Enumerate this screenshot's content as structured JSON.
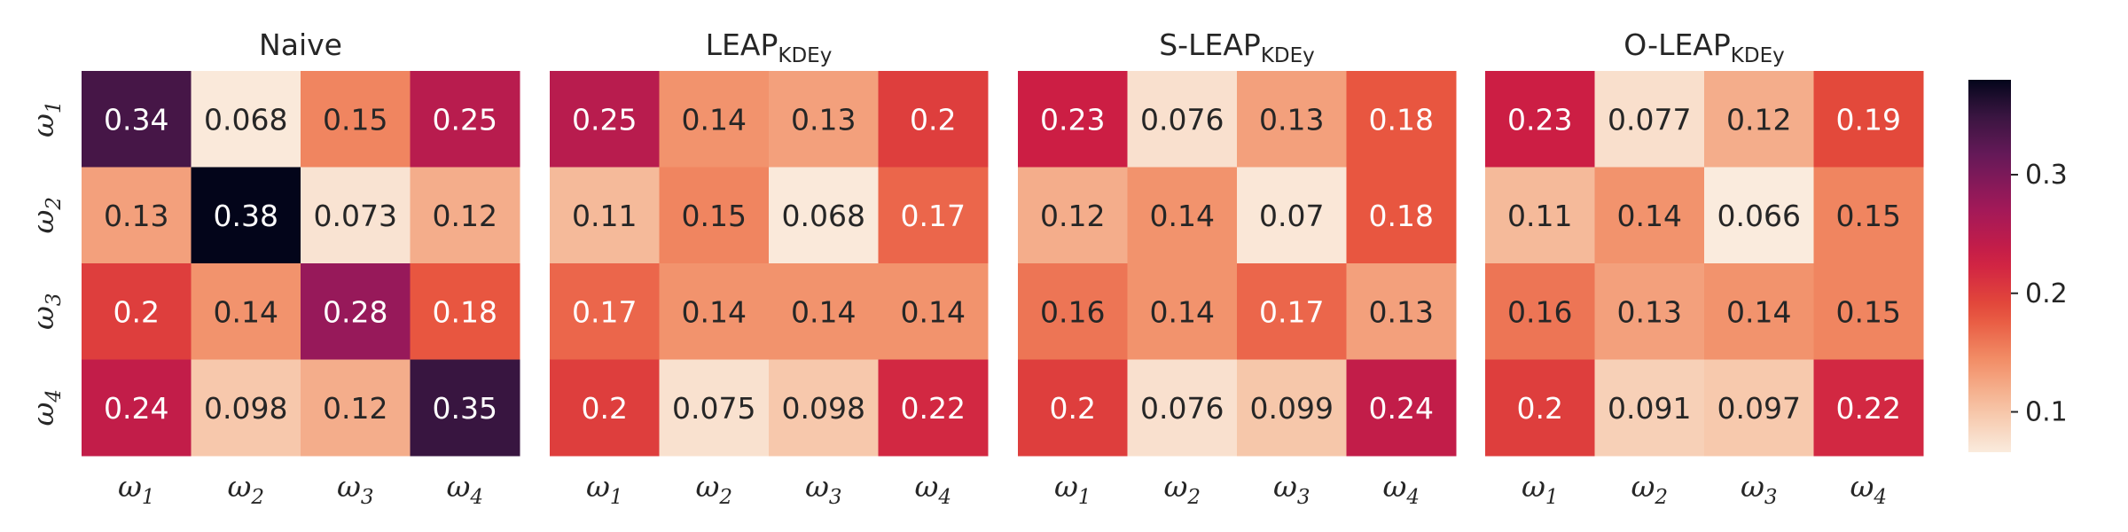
{
  "chart_data": [
    {
      "type": "heatmap",
      "title": "Naive",
      "title_sub": "",
      "x_tick_labels": [
        "ω1",
        "ω2",
        "ω3",
        "ω4"
      ],
      "y_tick_labels": [
        "ω1",
        "ω2",
        "ω3",
        "ω4"
      ],
      "values": [
        [
          0.34,
          0.068,
          0.15,
          0.25
        ],
        [
          0.13,
          0.38,
          0.073,
          0.12
        ],
        [
          0.2,
          0.14,
          0.28,
          0.18
        ],
        [
          0.24,
          0.098,
          0.12,
          0.35
        ]
      ],
      "labels": [
        [
          "0.34",
          "0.068",
          "0.15",
          "0.25"
        ],
        [
          "0.13",
          "0.38",
          "0.073",
          "0.12"
        ],
        [
          "0.2",
          "0.14",
          "0.28",
          "0.18"
        ],
        [
          "0.24",
          "0.098",
          "0.12",
          "0.35"
        ]
      ]
    },
    {
      "type": "heatmap",
      "title": "LEAP",
      "title_sub": "KDEy",
      "x_tick_labels": [
        "ω1",
        "ω2",
        "ω3",
        "ω4"
      ],
      "y_tick_labels": [],
      "values": [
        [
          0.25,
          0.14,
          0.13,
          0.2
        ],
        [
          0.11,
          0.15,
          0.068,
          0.17
        ],
        [
          0.17,
          0.14,
          0.14,
          0.14
        ],
        [
          0.2,
          0.075,
          0.098,
          0.22
        ]
      ],
      "labels": [
        [
          "0.25",
          "0.14",
          "0.13",
          "0.2"
        ],
        [
          "0.11",
          "0.15",
          "0.068",
          "0.17"
        ],
        [
          "0.17",
          "0.14",
          "0.14",
          "0.14"
        ],
        [
          "0.2",
          "0.075",
          "0.098",
          "0.22"
        ]
      ]
    },
    {
      "type": "heatmap",
      "title": "S-LEAP",
      "title_sub": "KDEy",
      "x_tick_labels": [
        "ω1",
        "ω2",
        "ω3",
        "ω4"
      ],
      "y_tick_labels": [],
      "values": [
        [
          0.23,
          0.076,
          0.13,
          0.18
        ],
        [
          0.12,
          0.14,
          0.07,
          0.18
        ],
        [
          0.16,
          0.14,
          0.17,
          0.13
        ],
        [
          0.2,
          0.076,
          0.099,
          0.24
        ]
      ],
      "labels": [
        [
          "0.23",
          "0.076",
          "0.13",
          "0.18"
        ],
        [
          "0.12",
          "0.14",
          "0.07",
          "0.18"
        ],
        [
          "0.16",
          "0.14",
          "0.17",
          "0.13"
        ],
        [
          "0.2",
          "0.076",
          "0.099",
          "0.24"
        ]
      ]
    },
    {
      "type": "heatmap",
      "title": "O-LEAP",
      "title_sub": "KDEy",
      "x_tick_labels": [
        "ω1",
        "ω2",
        "ω3",
        "ω4"
      ],
      "y_tick_labels": [],
      "values": [
        [
          0.23,
          0.077,
          0.12,
          0.19
        ],
        [
          0.11,
          0.14,
          0.066,
          0.15
        ],
        [
          0.16,
          0.13,
          0.14,
          0.15
        ],
        [
          0.2,
          0.091,
          0.097,
          0.22
        ]
      ],
      "labels": [
        [
          "0.23",
          "0.077",
          "0.12",
          "0.19"
        ],
        [
          "0.11",
          "0.14",
          "0.066",
          "0.15"
        ],
        [
          "0.16",
          "0.13",
          "0.14",
          "0.15"
        ],
        [
          "0.2",
          "0.091",
          "0.097",
          "0.22"
        ]
      ]
    }
  ],
  "colorbar": {
    "colormap": "rocket_r",
    "vmin": 0.066,
    "vmax": 0.38,
    "ticks": [
      0.1,
      0.2,
      0.3
    ],
    "tick_labels": [
      "0.1",
      "0.2",
      "0.3"
    ]
  }
}
